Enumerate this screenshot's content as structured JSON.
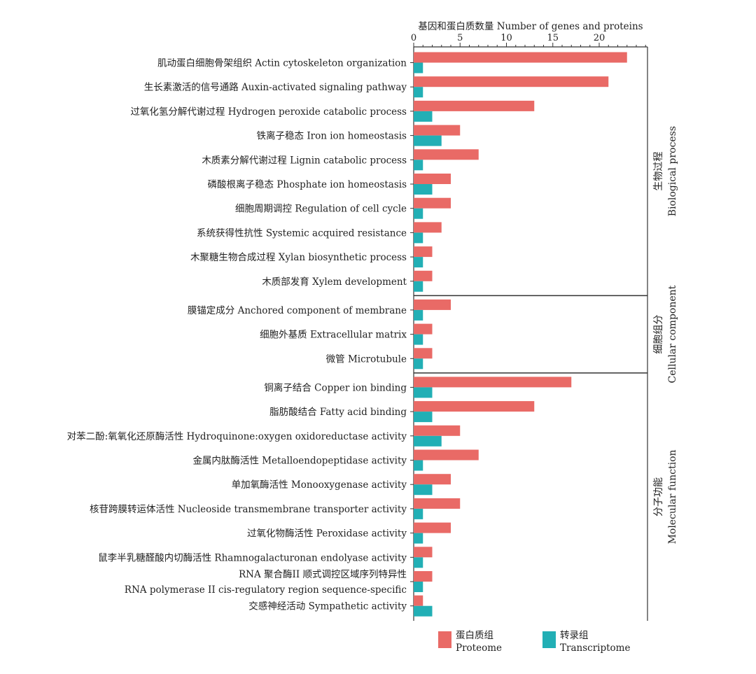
{
  "chart_data": {
    "type": "bar",
    "orientation": "horizontal",
    "xlabel": "基因和蛋白质数量 Number of genes and proteins",
    "xlim": [
      0,
      25
    ],
    "xticks": [
      0,
      5,
      10,
      15,
      20
    ],
    "grid": false,
    "legend_position": "bottom",
    "colors": {
      "proteome": "#E96A66",
      "transcriptome": "#22AFB5"
    },
    "series": [
      {
        "name": "蛋白质组",
        "name_en": "Proteome",
        "key": "proteome"
      },
      {
        "name": "转录组",
        "name_en": "Transcriptome",
        "key": "transcriptome"
      }
    ],
    "groups": [
      {
        "name_zh": "生物过程",
        "name_en": "Biological process",
        "categories": [
          {
            "label": "肌动蛋白细胞骨架组织 Actin cytoskeleton organization",
            "proteome": 23,
            "transcriptome": 1
          },
          {
            "label": "生长素激活的信号通路 Auxin-activated signaling pathway",
            "proteome": 21,
            "transcriptome": 1
          },
          {
            "label": "过氧化氢分解代谢过程 Hydrogen peroxide catabolic process",
            "proteome": 13,
            "transcriptome": 2
          },
          {
            "label": "铁离子稳态 Iron ion homeostasis",
            "proteome": 5,
            "transcriptome": 3
          },
          {
            "label": "木质素分解代谢过程 Lignin catabolic process",
            "proteome": 7,
            "transcriptome": 1
          },
          {
            "label": "磷酸根离子稳态 Phosphate ion homeostasis",
            "proteome": 4,
            "transcriptome": 2
          },
          {
            "label": "细胞周期调控 Regulation of cell cycle",
            "proteome": 4,
            "transcriptome": 1
          },
          {
            "label": "系统获得性抗性 Systemic acquired resistance",
            "proteome": 3,
            "transcriptome": 1
          },
          {
            "label": "木聚糖生物合成过程 Xylan biosynthetic process",
            "proteome": 2,
            "transcriptome": 1
          },
          {
            "label": "木质部发育 Xylem development",
            "proteome": 2,
            "transcriptome": 1
          }
        ]
      },
      {
        "name_zh": "细胞组分",
        "name_en": "Cellular component",
        "categories": [
          {
            "label": "膜锚定成分 Anchored component of membrane",
            "proteome": 4,
            "transcriptome": 1
          },
          {
            "label": "细胞外基质 Extracellular matrix",
            "proteome": 2,
            "transcriptome": 1
          },
          {
            "label": "微管 Microtubule",
            "proteome": 2,
            "transcriptome": 1
          }
        ]
      },
      {
        "name_zh": "分子功能",
        "name_en": "Molecular function",
        "categories": [
          {
            "label": "铜离子结合 Copper ion binding",
            "proteome": 17,
            "transcriptome": 2
          },
          {
            "label": "脂肪酸结合 Fatty acid binding",
            "proteome": 13,
            "transcriptome": 2
          },
          {
            "label": "对苯二酚:氧氧化还原酶活性 Hydroquinone:oxygen oxidoreductase activity",
            "proteome": 5,
            "transcriptome": 3
          },
          {
            "label": "金属内肽酶活性 Metalloendopeptidase activity",
            "proteome": 7,
            "transcriptome": 1
          },
          {
            "label": "单加氧酶活性 Monooxygenase activity",
            "proteome": 4,
            "transcriptome": 2
          },
          {
            "label": "核苷跨膜转运体活性 Nucleoside transmembrane transporter activity",
            "proteome": 5,
            "transcriptome": 1
          },
          {
            "label": "过氧化物酶活性 Peroxidase activity",
            "proteome": 4,
            "transcriptome": 1
          },
          {
            "label": "鼠李半乳糖醛酸内切酶活性 Rhamnogalacturonan endolyase activity",
            "proteome": 2,
            "transcriptome": 1
          },
          {
            "label": "RNA 聚合酶II 顺式调控区域序列特异性",
            "label_line2": "RNA polymerase II cis-regulatory region sequence-specific",
            "proteome": 2,
            "transcriptome": 1
          },
          {
            "label": "交感神经活动 Sympathetic activity",
            "proteome": 1,
            "transcriptome": 2
          }
        ]
      }
    ]
  }
}
